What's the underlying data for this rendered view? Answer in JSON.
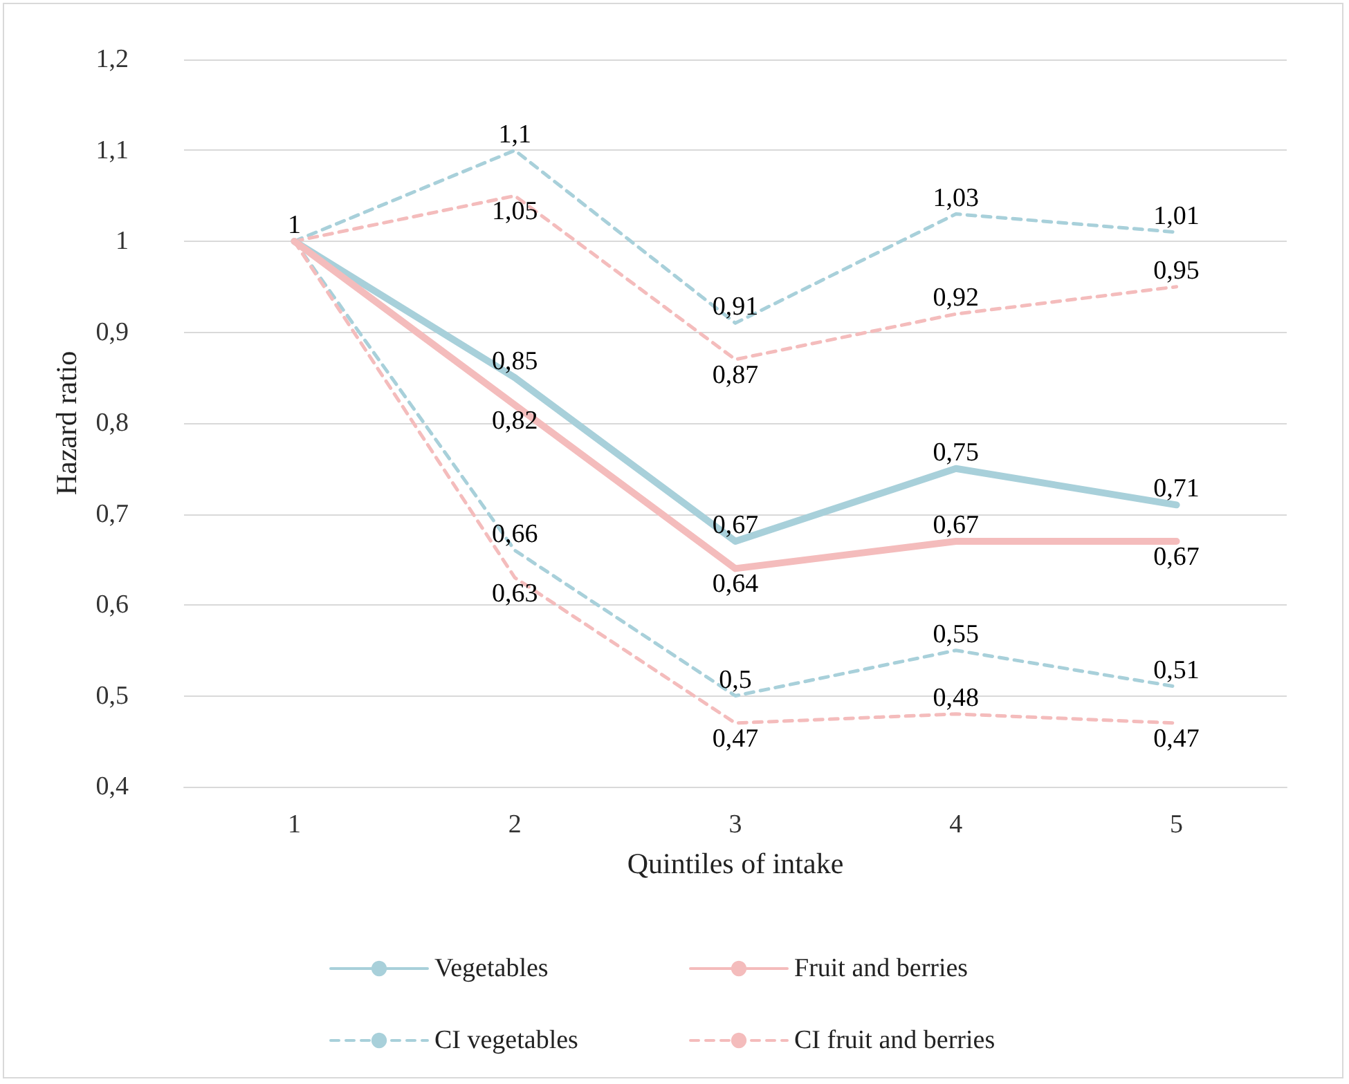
{
  "chart_data": {
    "type": "line",
    "xlabel": "Quintiles of intake",
    "ylabel": "Hazard ratio",
    "categories": [
      "1",
      "2",
      "3",
      "4",
      "5"
    ],
    "series": [
      {
        "name": "Vegetables",
        "color": "#a8d0da",
        "line_style": "solid",
        "values": [
          1,
          0.85,
          0.67,
          0.75,
          0.71
        ],
        "value_labels": [
          "1",
          "0,85",
          "0,67",
          "0,75",
          "0,71"
        ]
      },
      {
        "name": "Fruit and berries",
        "color": "#f4bcbc",
        "line_style": "solid",
        "values": [
          1,
          0.82,
          0.64,
          0.67,
          0.67
        ],
        "value_labels": [
          null,
          "0,82",
          "0,64",
          "0,67",
          "0,67"
        ]
      },
      {
        "name": "CI vegetables",
        "color": "#a8d0da",
        "line_style": "dashed",
        "values": [
          1,
          1.1,
          0.91,
          1.03,
          1.01
        ],
        "value_labels": [
          null,
          "1,1",
          "0,91",
          "1,03",
          "1,01"
        ]
      },
      {
        "name": "CI fruit and berries",
        "color": "#f4bcbc",
        "line_style": "dashed",
        "values": [
          1,
          1.05,
          0.87,
          0.92,
          0.95
        ],
        "value_labels": [
          null,
          "1,05",
          "0,87",
          "0,92",
          "0,95"
        ]
      },
      {
        "color": "#a8d0da",
        "line_style": "dashed",
        "values": [
          1,
          0.66,
          0.5,
          0.55,
          0.51
        ],
        "value_labels": [
          null,
          "0,66",
          "0,5",
          "0,55",
          "0,51"
        ]
      },
      {
        "color": "#f4bcbc",
        "line_style": "dashed",
        "values": [
          1,
          0.63,
          0.47,
          0.48,
          0.47
        ],
        "value_labels": [
          null,
          "0,63",
          "0,47",
          "0,48",
          "0,47"
        ]
      }
    ],
    "ylim": [
      0.4,
      1.2
    ],
    "yticks": [
      {
        "value": 0.4,
        "label": "0,4"
      },
      {
        "value": 0.5,
        "label": "0,5"
      },
      {
        "value": 0.6,
        "label": "0,6"
      },
      {
        "value": 0.7,
        "label": "0,7"
      },
      {
        "value": 0.8,
        "label": "0,8"
      },
      {
        "value": 0.9,
        "label": "0,9"
      },
      {
        "value": 1,
        "label": "1"
      },
      {
        "value": 1.1,
        "label": "1,1"
      },
      {
        "value": 1.2,
        "label": "1,2"
      }
    ],
    "grid": "y",
    "legend": "bottom",
    "marker": "none"
  }
}
